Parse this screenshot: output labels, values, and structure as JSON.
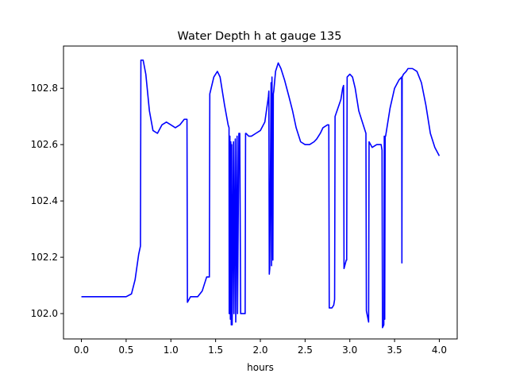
{
  "chart_data": {
    "type": "line",
    "title": "Water Depth h at gauge 135",
    "xlabel": "hours",
    "ylabel": "",
    "xlim": [
      -0.2,
      4.2
    ],
    "ylim": [
      101.91,
      102.95
    ],
    "xticks": [
      0.0,
      0.5,
      1.0,
      1.5,
      2.0,
      2.5,
      3.0,
      3.5,
      4.0
    ],
    "xtick_labels": [
      "0.0",
      "0.5",
      "1.0",
      "1.5",
      "2.0",
      "2.5",
      "3.0",
      "3.5",
      "4.0"
    ],
    "yticks": [
      102.0,
      102.2,
      102.4,
      102.6,
      102.8
    ],
    "ytick_labels": [
      "102.0",
      "102.2",
      "102.4",
      "102.6",
      "102.8"
    ],
    "grid": false,
    "legend": "none",
    "series": [
      {
        "color": "#0000ff",
        "x": [
          0.0,
          0.2,
          0.5,
          0.56,
          0.6,
          0.64,
          0.66,
          0.665,
          0.69,
          0.72,
          0.76,
          0.8,
          0.85,
          0.9,
          0.95,
          1.0,
          1.05,
          1.1,
          1.15,
          1.18,
          1.185,
          1.22,
          1.25,
          1.3,
          1.35,
          1.4,
          1.43,
          1.435,
          1.48,
          1.52,
          1.55,
          1.6,
          1.64,
          1.65,
          1.652,
          1.66,
          1.665,
          1.67,
          1.675,
          1.68,
          1.685,
          1.7,
          1.705,
          1.72,
          1.725,
          1.74,
          1.745,
          1.76,
          1.77,
          1.78,
          1.785,
          1.8,
          1.82,
          1.83,
          1.835,
          1.84,
          1.87,
          1.9,
          1.95,
          2.0,
          2.05,
          2.09,
          2.095,
          2.1,
          2.105,
          2.12,
          2.125,
          2.13,
          2.14,
          2.145,
          2.15,
          2.17,
          2.2,
          2.23,
          2.27,
          2.32,
          2.36,
          2.4,
          2.45,
          2.5,
          2.55,
          2.6,
          2.63,
          2.67,
          2.7,
          2.75,
          2.765,
          2.77,
          2.8,
          2.82,
          2.83,
          2.835,
          2.9,
          2.92,
          2.93,
          2.935,
          2.96,
          2.965,
          2.97,
          3.0,
          3.03,
          3.06,
          3.1,
          3.15,
          3.18,
          3.185,
          3.21,
          3.215,
          3.25,
          3.3,
          3.35,
          3.36,
          3.365,
          3.38,
          3.385,
          3.39,
          3.395,
          3.4,
          3.45,
          3.5,
          3.55,
          3.58,
          3.582,
          3.585,
          3.6,
          3.63,
          3.65,
          3.66,
          3.7,
          3.75,
          3.8,
          3.85,
          3.9,
          3.95,
          4.0
        ],
        "y": [
          102.06,
          102.06,
          102.06,
          102.07,
          102.12,
          102.21,
          102.24,
          102.9,
          102.9,
          102.85,
          102.72,
          102.65,
          102.64,
          102.67,
          102.68,
          102.67,
          102.66,
          102.67,
          102.69,
          102.69,
          102.04,
          102.06,
          102.06,
          102.06,
          102.08,
          102.13,
          102.13,
          102.78,
          102.84,
          102.86,
          102.84,
          102.74,
          102.67,
          102.66,
          102.0,
          102.63,
          101.98,
          102.61,
          101.96,
          102.6,
          101.96,
          102.61,
          102.0,
          102.62,
          101.97,
          102.63,
          102.0,
          102.64,
          102.64,
          102.0,
          102.0,
          102.0,
          102.0,
          102.0,
          102.64,
          102.64,
          102.63,
          102.63,
          102.64,
          102.65,
          102.68,
          102.77,
          102.79,
          102.14,
          102.16,
          102.82,
          102.17,
          102.84,
          102.19,
          102.78,
          102.79,
          102.86,
          102.89,
          102.87,
          102.83,
          102.77,
          102.72,
          102.66,
          102.61,
          102.6,
          102.6,
          102.61,
          102.62,
          102.64,
          102.66,
          102.67,
          102.67,
          102.02,
          102.02,
          102.03,
          102.05,
          102.7,
          102.76,
          102.8,
          102.81,
          102.16,
          102.19,
          102.19,
          102.84,
          102.85,
          102.84,
          102.8,
          102.72,
          102.67,
          102.64,
          102.01,
          101.97,
          102.61,
          102.59,
          102.6,
          102.6,
          102.58,
          101.95,
          101.96,
          102.63,
          101.98,
          102.63,
          102.63,
          102.73,
          102.8,
          102.83,
          102.84,
          102.18,
          102.84,
          102.85,
          102.86,
          102.87,
          102.87,
          102.87,
          102.86,
          102.82,
          102.74,
          102.64,
          102.59,
          102.56
        ]
      }
    ]
  }
}
